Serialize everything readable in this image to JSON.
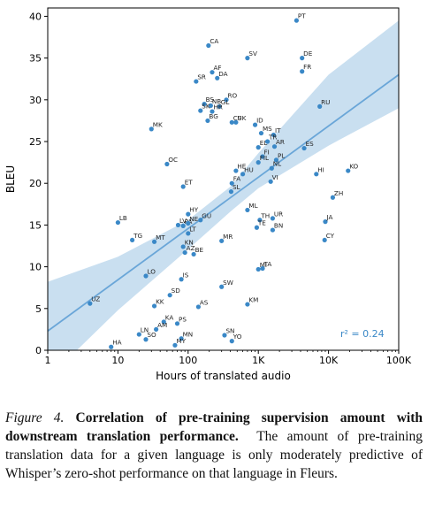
{
  "chart_data": {
    "type": "scatter",
    "x_scale": "log",
    "xlabel": "Hours of translated audio",
    "ylabel": "BLEU",
    "xlim": [
      1,
      100000
    ],
    "ylim": [
      0,
      41
    ],
    "x_ticks": [
      {
        "value": 1,
        "label": "1"
      },
      {
        "value": 10,
        "label": "10"
      },
      {
        "value": 100,
        "label": "100"
      },
      {
        "value": 1000,
        "label": "1K"
      },
      {
        "value": 10000,
        "label": "10K"
      },
      {
        "value": 100000,
        "label": "100K"
      }
    ],
    "y_ticks": [
      0,
      5,
      10,
      15,
      20,
      25,
      30,
      35,
      40
    ],
    "grid": false,
    "point_color": "#3a88c7",
    "fit_color": "#6aa6d8",
    "band_color": "#c9dff0",
    "annotation": "r² = 0.24",
    "annotation_color": "#3a88c7",
    "fit_line": {
      "x": [
        1,
        100000
      ],
      "y": [
        2.3,
        33.0
      ]
    },
    "confidence_band": [
      {
        "x": 1,
        "lo": -3.4,
        "hi": 8.2
      },
      {
        "x": 10,
        "lo": 4.8,
        "hi": 11.2
      },
      {
        "x": 100,
        "lo": 12.1,
        "hi": 15.6
      },
      {
        "x": 400,
        "lo": 16.6,
        "hi": 19.6
      },
      {
        "x": 1000,
        "lo": 19.4,
        "hi": 23.6
      },
      {
        "x": 10000,
        "lo": 24.5,
        "hi": 33.0
      },
      {
        "x": 100000,
        "lo": 29.0,
        "hi": 39.5
      }
    ],
    "points": [
      {
        "label": "PT",
        "x": 3500,
        "y": 39.5
      },
      {
        "label": "CA",
        "x": 195,
        "y": 36.5
      },
      {
        "label": "SV",
        "x": 700,
        "y": 35.0
      },
      {
        "label": "DE",
        "x": 4200,
        "y": 35.0
      },
      {
        "label": "FR",
        "x": 4200,
        "y": 33.4
      },
      {
        "label": "AF",
        "x": 220,
        "y": 33.3
      },
      {
        "label": "DA",
        "x": 260,
        "y": 32.6
      },
      {
        "label": "SR",
        "x": 130,
        "y": 32.2
      },
      {
        "label": "RO",
        "x": 350,
        "y": 30.0
      },
      {
        "label": "BS",
        "x": 170,
        "y": 29.5
      },
      {
        "label": "NB",
        "x": 210,
        "y": 29.3
      },
      {
        "label": "GL",
        "x": 280,
        "y": 29.2
      },
      {
        "label": "RU",
        "x": 7500,
        "y": 29.2
      },
      {
        "label": "SK",
        "x": 150,
        "y": 28.7
      },
      {
        "label": "HR",
        "x": 220,
        "y": 28.6
      },
      {
        "label": "MK",
        "x": 30,
        "y": 26.5
      },
      {
        "label": "BG",
        "x": 190,
        "y": 27.5
      },
      {
        "label": "CS",
        "x": 420,
        "y": 27.3
      },
      {
        "label": "UK",
        "x": 480,
        "y": 27.3
      },
      {
        "label": "ID",
        "x": 900,
        "y": 27.0
      },
      {
        "label": "MS",
        "x": 1100,
        "y": 26.0
      },
      {
        "label": "IT",
        "x": 1650,
        "y": 25.8
      },
      {
        "label": "TR",
        "x": 1350,
        "y": 25.0
      },
      {
        "label": "AR",
        "x": 1700,
        "y": 24.4
      },
      {
        "label": "ES",
        "x": 4500,
        "y": 24.2
      },
      {
        "label": "EL",
        "x": 1000,
        "y": 24.3
      },
      {
        "label": "FI",
        "x": 1150,
        "y": 23.2
      },
      {
        "label": "PL",
        "x": 1800,
        "y": 22.8
      },
      {
        "label": "FIL",
        "x": 1000,
        "y": 22.5
      },
      {
        "label": "OC",
        "x": 50,
        "y": 22.3
      },
      {
        "label": "NL",
        "x": 1550,
        "y": 21.8
      },
      {
        "label": "KO",
        "x": 19000,
        "y": 21.5
      },
      {
        "label": "HE",
        "x": 480,
        "y": 21.5
      },
      {
        "label": "HU",
        "x": 600,
        "y": 21.1
      },
      {
        "label": "HI",
        "x": 6700,
        "y": 21.1
      },
      {
        "label": "VI",
        "x": 1500,
        "y": 20.2
      },
      {
        "label": "FA",
        "x": 420,
        "y": 20.0
      },
      {
        "label": "ET",
        "x": 85,
        "y": 19.6
      },
      {
        "label": "SL",
        "x": 410,
        "y": 19.0
      },
      {
        "label": "ZH",
        "x": 11500,
        "y": 18.3
      },
      {
        "label": "ML",
        "x": 700,
        "y": 16.8
      },
      {
        "label": "HY",
        "x": 100,
        "y": 16.3
      },
      {
        "label": "GU",
        "x": 150,
        "y": 15.6
      },
      {
        "label": "TH",
        "x": 1050,
        "y": 15.6
      },
      {
        "label": "UR",
        "x": 1600,
        "y": 15.8
      },
      {
        "label": "JA",
        "x": 9000,
        "y": 15.4
      },
      {
        "label": "LB",
        "x": 10,
        "y": 15.3
      },
      {
        "label": "LV",
        "x": 72,
        "y": 15.0
      },
      {
        "label": "PA",
        "x": 85,
        "y": 14.9
      },
      {
        "label": "NE",
        "x": 100,
        "y": 15.2
      },
      {
        "label": "TE",
        "x": 950,
        "y": 14.7
      },
      {
        "label": "BN",
        "x": 1600,
        "y": 14.4
      },
      {
        "label": "LT",
        "x": 100,
        "y": 14.0
      },
      {
        "label": "TG",
        "x": 16,
        "y": 13.2
      },
      {
        "label": "MT",
        "x": 33,
        "y": 13.0
      },
      {
        "label": "MR",
        "x": 300,
        "y": 13.1
      },
      {
        "label": "CY",
        "x": 8800,
        "y": 13.2
      },
      {
        "label": "KN",
        "x": 85,
        "y": 12.4
      },
      {
        "label": "AZ",
        "x": 90,
        "y": 11.7
      },
      {
        "label": "BE",
        "x": 120,
        "y": 11.5
      },
      {
        "label": "MI",
        "x": 1000,
        "y": 9.7
      },
      {
        "label": "TA",
        "x": 1150,
        "y": 9.8
      },
      {
        "label": "LO",
        "x": 25,
        "y": 8.9
      },
      {
        "label": "IS",
        "x": 80,
        "y": 8.5
      },
      {
        "label": "SW",
        "x": 300,
        "y": 7.6
      },
      {
        "label": "SD",
        "x": 55,
        "y": 6.6
      },
      {
        "label": "KM",
        "x": 700,
        "y": 5.5
      },
      {
        "label": "UZ",
        "x": 4,
        "y": 5.6
      },
      {
        "label": "KK",
        "x": 33,
        "y": 5.3
      },
      {
        "label": "AS",
        "x": 140,
        "y": 5.2
      },
      {
        "label": "KA",
        "x": 45,
        "y": 3.4
      },
      {
        "label": "PS",
        "x": 70,
        "y": 3.2
      },
      {
        "label": "AM",
        "x": 35,
        "y": 2.5
      },
      {
        "label": "LN",
        "x": 20,
        "y": 1.9
      },
      {
        "label": "SN",
        "x": 330,
        "y": 1.8
      },
      {
        "label": "SO",
        "x": 25,
        "y": 1.3
      },
      {
        "label": "MN",
        "x": 80,
        "y": 1.4
      },
      {
        "label": "YO",
        "x": 420,
        "y": 1.1
      },
      {
        "label": "MY",
        "x": 65,
        "y": 0.6
      },
      {
        "label": "HA",
        "x": 8,
        "y": 0.4
      }
    ]
  },
  "caption": {
    "figure_label": "Figure 4.",
    "bold_text": "Correlation of pre-training supervision amount with downstream translation performance.",
    "body_text": "The amount of pre-training translation data for a given language is only moderately predictive of Whisper’s zero-shot performance on that language in Fleurs."
  }
}
